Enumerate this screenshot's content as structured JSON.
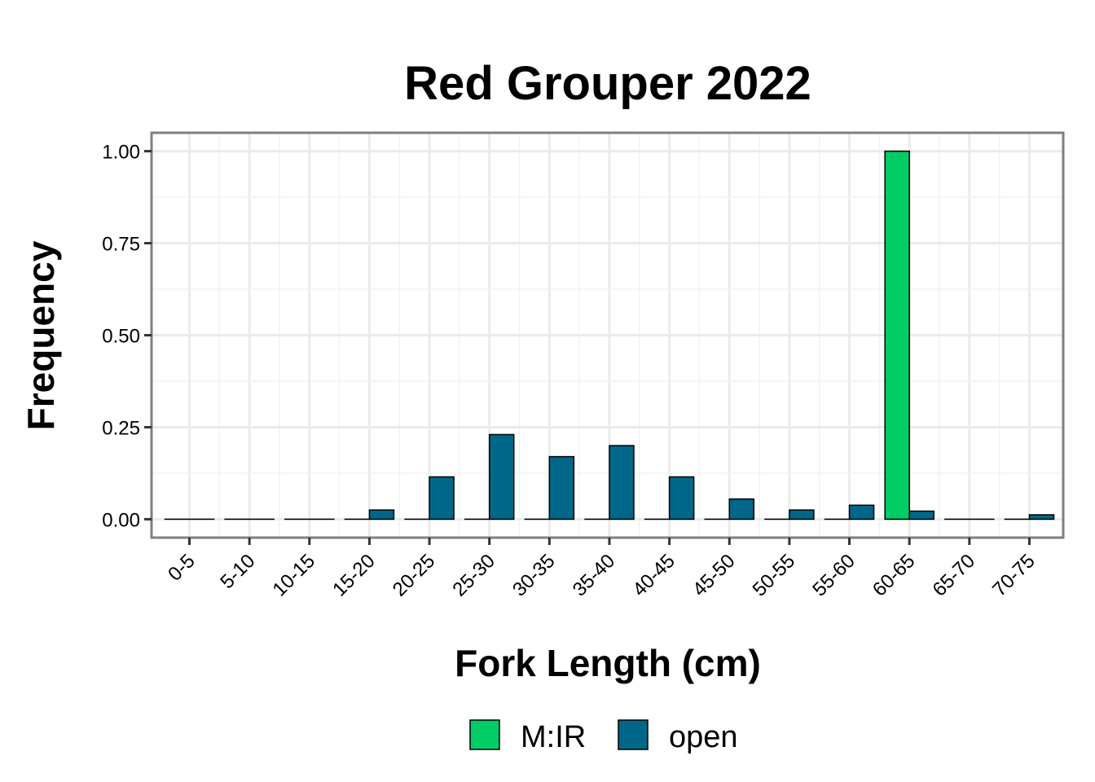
{
  "chart_data": {
    "type": "bar",
    "title": "Red Grouper 2022",
    "xlabel": "Fork Length (cm)",
    "ylabel": "Frequency",
    "ylim": [
      -0.05,
      1.05
    ],
    "yticks": [
      "0.00",
      "0.25",
      "0.50",
      "0.75",
      "1.00"
    ],
    "ytick_values": [
      0,
      0.25,
      0.5,
      0.75,
      1.0
    ],
    "categories": [
      "0-5",
      "5-10",
      "10-15",
      "15-20",
      "20-25",
      "25-30",
      "30-35",
      "35-40",
      "40-45",
      "45-50",
      "50-55",
      "55-60",
      "60-65",
      "65-70",
      "70-75"
    ],
    "series": [
      {
        "name": "M:IR",
        "color": "#00CC66",
        "values": [
          0,
          0,
          0,
          0,
          0,
          0,
          0,
          0,
          0,
          0,
          0,
          0,
          1.0,
          0,
          0
        ]
      },
      {
        "name": "open",
        "color": "#006789",
        "values": [
          0,
          0,
          0,
          0.025,
          0.115,
          0.23,
          0.17,
          0.2,
          0.115,
          0.055,
          0.025,
          0.038,
          0.022,
          0,
          0.012
        ]
      }
    ],
    "grid": true,
    "legend_position": "bottom"
  }
}
